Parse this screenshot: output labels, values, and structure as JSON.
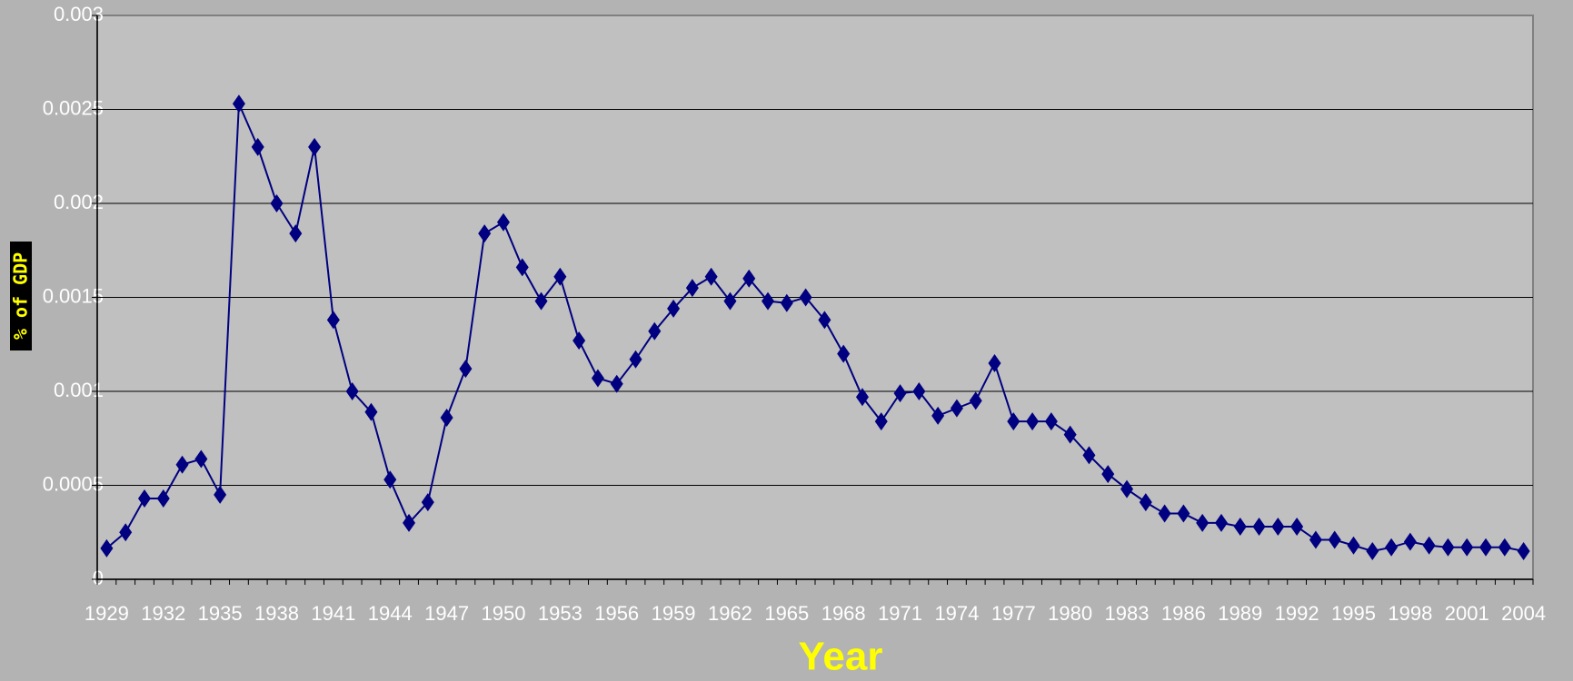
{
  "chart_data": {
    "type": "line",
    "x_label": "Year",
    "y_label": "% of GDP",
    "categories": [
      "1929",
      null,
      null,
      "1932",
      null,
      null,
      "1935",
      null,
      null,
      "1938",
      null,
      null,
      "1941",
      null,
      null,
      "1944",
      null,
      null,
      "1947",
      null,
      null,
      "1950",
      null,
      null,
      "1953",
      null,
      null,
      "1956",
      null,
      null,
      "1959",
      null,
      null,
      "1962",
      null,
      null,
      "1965",
      null,
      null,
      "1968",
      null,
      null,
      "1971",
      null,
      null,
      "1974",
      null,
      null,
      "1977",
      null,
      null,
      "1980",
      null,
      null,
      "1983",
      null,
      null,
      "1986",
      null,
      null,
      "1989",
      null,
      null,
      "1992",
      null,
      null,
      "1995",
      null,
      null,
      "1998",
      null,
      null,
      "2001",
      null,
      null,
      "2004"
    ],
    "values": [
      0.000165,
      0.00025,
      0.00043,
      0.00043,
      0.00061,
      0.00064,
      0.00045,
      0.00253,
      0.0023,
      0.002,
      0.00184,
      0.0023,
      0.00138,
      0.001,
      0.00089,
      0.00053,
      0.0003,
      0.00041,
      0.00086,
      0.00112,
      0.00184,
      0.0019,
      0.00166,
      0.00148,
      0.00161,
      0.00127,
      0.00107,
      0.00104,
      0.00117,
      0.00132,
      0.00144,
      0.00155,
      0.00161,
      0.00148,
      0.0016,
      0.00148,
      0.00147,
      0.0015,
      0.00138,
      0.0012,
      0.00097,
      0.00084,
      0.00099,
      0.001,
      0.00087,
      0.00091,
      0.00095,
      0.00115,
      0.00084,
      0.00084,
      0.00084,
      0.00077,
      0.00066,
      0.00056,
      0.00048,
      0.00041,
      0.00035,
      0.00035,
      0.0003,
      0.0003,
      0.00028,
      0.00028,
      0.00028,
      0.00028,
      0.00021,
      0.00021,
      0.00018,
      0.00015,
      0.00017,
      0.0002,
      0.00018,
      0.00017,
      0.00017,
      0.00017,
      0.00017,
      0.00015
    ],
    "color": "#000080",
    "ylim": [
      0,
      0.003
    ],
    "yticks": [
      0,
      0.0005,
      0.001,
      0.0015,
      0.002,
      0.0025,
      0.003
    ],
    "grid": true
  }
}
